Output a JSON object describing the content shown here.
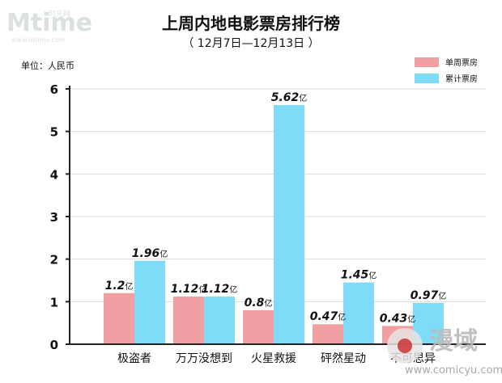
{
  "header": {
    "watermark_logo": "Mtime",
    "watermark_cn": "时光网",
    "watermark_url": "www.mtime.com"
  },
  "footer": {
    "watermark_cn": "漫域",
    "watermark_url": "www.comicyu.com"
  },
  "colors": {
    "weekly": "#f0a0a3",
    "cumulative": "#7fdcf9",
    "axis": "#222222",
    "grid": "#d9d9d9"
  },
  "chart_data": {
    "type": "bar",
    "title": "上周内地电影票房排行榜",
    "subtitle": "（ 12月7日—12月13日 ）",
    "unit_label": "单位：人民币",
    "ylim": [
      0,
      6
    ],
    "y_ticks": [
      "0",
      "1",
      "2",
      "3",
      "4",
      "5",
      "6"
    ],
    "categories": [
      "极盗者",
      "万万没想到",
      "火星救援",
      "砰然星动",
      "不可思异"
    ],
    "legend_position": "top-right",
    "grid": true,
    "series": [
      {
        "name": "单周票房",
        "values": [
          1.2,
          1.12,
          0.8,
          0.47,
          0.43
        ],
        "labels": [
          "1.2",
          "1.12",
          "0.8",
          "0.47",
          "0.43"
        ]
      },
      {
        "name": "累计票房",
        "values": [
          1.96,
          1.12,
          5.62,
          1.45,
          0.97
        ],
        "labels": [
          "1.96",
          "1.12",
          "5.62",
          "1.45",
          "0.97"
        ]
      }
    ],
    "value_suffix": "亿"
  }
}
